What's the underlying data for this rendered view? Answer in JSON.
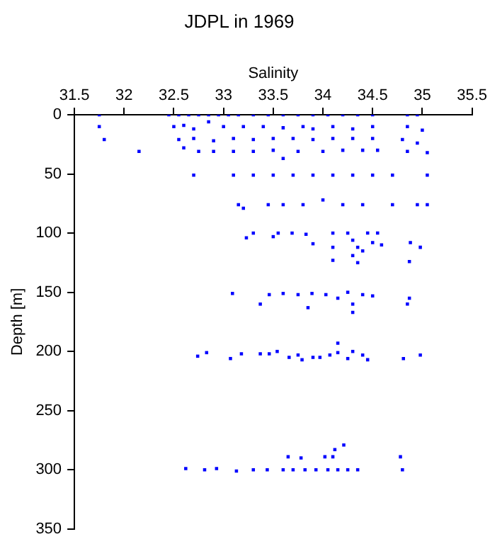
{
  "chart_data": {
    "type": "scatter",
    "title": "JDPL in 1969",
    "xlabel": "Salinity",
    "ylabel": "Depth [m]",
    "xlim": [
      31.5,
      35.5
    ],
    "xticks": [
      31.5,
      32,
      32.5,
      33,
      33.5,
      34,
      34.5,
      35,
      35.5
    ],
    "ylim": [
      350,
      0
    ],
    "yticks": [
      0,
      50,
      100,
      150,
      200,
      250,
      300,
      350
    ],
    "grid": false,
    "legend": false,
    "marker": "square",
    "series": [
      {
        "color": "#0000ff",
        "x": [
          31.75,
          32.45,
          32.55,
          32.65,
          32.75,
          32.85,
          32.95,
          33.05,
          33.15,
          33.3,
          33.45,
          33.6,
          33.75,
          33.9,
          34.05,
          34.2,
          34.35,
          34.5,
          34.85,
          34.95,
          31.75,
          32.5,
          32.6,
          32.7,
          32.85,
          33.0,
          33.2,
          33.4,
          33.6,
          33.8,
          33.9,
          34.1,
          34.3,
          34.5,
          34.85,
          35.0,
          31.8,
          32.55,
          32.7,
          32.9,
          33.1,
          33.3,
          33.5,
          33.7,
          33.9,
          34.1,
          34.3,
          34.5,
          34.8,
          34.95,
          32.15,
          32.6,
          32.75,
          32.9,
          33.1,
          33.3,
          33.5,
          33.6,
          33.75,
          34.0,
          34.2,
          34.4,
          34.55,
          34.85,
          35.05,
          32.7,
          33.1,
          33.3,
          33.5,
          33.7,
          33.9,
          34.1,
          34.3,
          34.5,
          34.7,
          35.05,
          33.15,
          33.2,
          33.45,
          33.6,
          33.8,
          34.0,
          34.2,
          34.4,
          34.7,
          34.95,
          35.05,
          33.23,
          33.3,
          33.5,
          33.55,
          33.69,
          33.83,
          33.9,
          34.1,
          34.1,
          34.25,
          34.3,
          34.35,
          34.3,
          34.4,
          34.45,
          34.5,
          34.55,
          34.59,
          34.88,
          34.98,
          34.1,
          34.35,
          34.87,
          33.09,
          33.37,
          33.46,
          33.6,
          33.75,
          33.89,
          34.03,
          34.15,
          34.25,
          34.3,
          34.4,
          34.5,
          34.87,
          34.85,
          33.85,
          34.3,
          32.74,
          32.83,
          33.07,
          33.18,
          33.37,
          33.46,
          33.54,
          33.66,
          33.75,
          33.79,
          33.9,
          33.97,
          34.07,
          34.15,
          34.25,
          34.3,
          34.4,
          34.45,
          34.81,
          34.98,
          34.15,
          32.62,
          32.81,
          32.93,
          33.13,
          33.3,
          33.44,
          33.6,
          33.7,
          33.82,
          33.93,
          34.05,
          34.15,
          34.25,
          34.35,
          34.8,
          33.65,
          33.78,
          34.02,
          34.1,
          34.21,
          34.12,
          34.78
        ],
        "values": [
          0,
          0,
          0,
          0,
          0,
          0,
          0,
          0,
          0,
          0,
          0,
          0,
          0,
          0,
          0,
          0,
          0,
          0,
          0,
          0,
          10,
          10,
          9,
          12,
          6,
          10,
          10,
          10,
          11,
          10,
          12,
          10,
          12,
          10,
          10,
          13,
          21,
          21,
          20,
          22,
          20,
          21,
          20,
          20,
          21,
          20,
          20,
          20,
          21,
          24,
          31,
          28,
          31,
          31,
          31,
          31,
          30,
          37,
          31,
          31,
          30,
          30,
          30,
          31,
          32,
          51,
          51,
          51,
          51,
          51,
          51,
          51,
          51,
          51,
          51,
          51,
          76,
          79,
          76,
          76,
          76,
          72,
          76,
          76,
          76,
          76,
          76,
          104,
          100,
          103,
          100,
          100,
          101,
          109,
          100,
          112,
          100,
          106,
          112,
          119,
          115,
          100,
          108,
          100,
          110,
          108,
          112,
          123,
          125,
          124,
          151,
          160,
          152,
          151,
          152,
          151,
          152,
          155,
          150,
          160,
          152,
          153,
          155,
          160,
          163,
          167,
          204,
          201,
          206,
          202,
          202,
          202,
          200,
          205,
          203,
          207,
          205,
          205,
          203,
          201,
          206,
          200,
          203,
          207,
          206,
          203,
          193,
          299,
          300,
          299,
          301,
          300,
          300,
          300,
          300,
          300,
          300,
          300,
          300,
          300,
          300,
          300,
          289,
          290,
          289,
          289,
          279,
          283,
          289
        ]
      }
    ]
  }
}
